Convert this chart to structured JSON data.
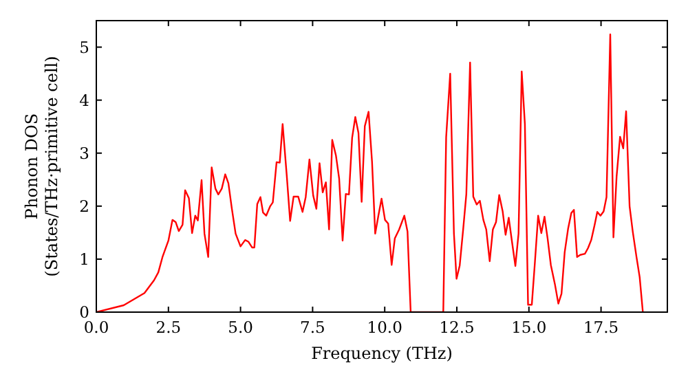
{
  "chart_data": {
    "type": "line",
    "xlabel": "Frequency (THz)",
    "ylabel": "Phonon DOS\n(States/THz·primitive cell)",
    "xlim": [
      0,
      19.8
    ],
    "ylim": [
      0,
      5.5
    ],
    "xticks": [
      {
        "value": 0,
        "label": "0.0"
      },
      {
        "value": 2.5,
        "label": "2.5"
      },
      {
        "value": 5,
        "label": "5.0"
      },
      {
        "value": 7.5,
        "label": "7.5"
      },
      {
        "value": 10,
        "label": "10.0"
      },
      {
        "value": 12.5,
        "label": "12.5"
      },
      {
        "value": 15,
        "label": "15.0"
      },
      {
        "value": 17.5,
        "label": "17.5"
      }
    ],
    "yticks": [
      0,
      1,
      2,
      3,
      4,
      5
    ],
    "grid": false,
    "marker": "none",
    "line_style": "solid",
    "series": [
      {
        "color": "#ff0000",
        "x": [
          0,
          0.95,
          1.67,
          2.0,
          2.15,
          2.3,
          2.5,
          2.64,
          2.75,
          2.86,
          2.99,
          3.08,
          3.21,
          3.32,
          3.43,
          3.52,
          3.65,
          3.75,
          3.88,
          4.0,
          4.13,
          4.23,
          4.35,
          4.47,
          4.58,
          4.7,
          4.83,
          5.0,
          5.16,
          5.27,
          5.4,
          5.48,
          5.58,
          5.69,
          5.78,
          5.89,
          6.03,
          6.12,
          6.25,
          6.36,
          6.46,
          6.6,
          6.72,
          6.84,
          7.0,
          7.15,
          7.26,
          7.39,
          7.52,
          7.63,
          7.74,
          7.85,
          7.96,
          8.07,
          8.18,
          8.31,
          8.42,
          8.54,
          8.65,
          8.76,
          8.87,
          8.98,
          9.09,
          9.2,
          9.31,
          9.44,
          9.56,
          9.67,
          9.78,
          9.89,
          10.01,
          10.12,
          10.24,
          10.35,
          10.5,
          10.68,
          10.79,
          10.9,
          12.03,
          12.13,
          12.27,
          12.4,
          12.49,
          12.6,
          12.72,
          12.83,
          12.96,
          13.07,
          13.19,
          13.3,
          13.42,
          13.52,
          13.64,
          13.75,
          13.86,
          13.97,
          14.09,
          14.19,
          14.3,
          14.42,
          14.53,
          14.64,
          14.75,
          14.86,
          14.97,
          15.1,
          15.21,
          15.32,
          15.43,
          15.54,
          15.65,
          15.76,
          15.9,
          16.02,
          16.13,
          16.24,
          16.36,
          16.47,
          16.56,
          16.67,
          16.78,
          16.94,
          17.05,
          17.16,
          17.28,
          17.37,
          17.48,
          17.59,
          17.69,
          17.82,
          17.93,
          18.04,
          18.16,
          18.27,
          18.37,
          18.49,
          18.6,
          18.73,
          18.84,
          18.95
        ],
        "values": [
          0,
          0.13,
          0.36,
          0.6,
          0.75,
          1.05,
          1.35,
          1.74,
          1.7,
          1.53,
          1.65,
          2.3,
          2.15,
          1.49,
          1.82,
          1.73,
          2.49,
          1.48,
          1.04,
          2.73,
          2.33,
          2.22,
          2.33,
          2.6,
          2.43,
          1.95,
          1.48,
          1.24,
          1.36,
          1.33,
          1.22,
          1.22,
          2.04,
          2.17,
          1.88,
          1.82,
          2.0,
          2.07,
          2.83,
          2.82,
          3.55,
          2.6,
          1.72,
          2.18,
          2.18,
          1.89,
          2.17,
          2.88,
          2.2,
          1.95,
          2.81,
          2.26,
          2.45,
          1.56,
          3.25,
          2.95,
          2.52,
          1.35,
          2.23,
          2.22,
          3.29,
          3.68,
          3.38,
          2.08,
          3.51,
          3.78,
          2.84,
          1.48,
          1.82,
          2.14,
          1.74,
          1.67,
          0.89,
          1.39,
          1.56,
          1.82,
          1.52,
          0,
          0,
          3.3,
          4.5,
          1.48,
          0.63,
          0.88,
          1.56,
          2.23,
          4.71,
          2.18,
          2.03,
          2.1,
          1.74,
          1.56,
          0.96,
          1.56,
          1.7,
          2.21,
          1.9,
          1.46,
          1.78,
          1.3,
          0.87,
          1.48,
          4.54,
          3.55,
          0.14,
          0.14,
          0.96,
          1.82,
          1.49,
          1.8,
          1.38,
          0.89,
          0.53,
          0.16,
          0.35,
          1.13,
          1.58,
          1.87,
          1.93,
          1.04,
          1.08,
          1.1,
          1.21,
          1.36,
          1.65,
          1.89,
          1.82,
          1.9,
          2.17,
          5.24,
          1.41,
          2.56,
          3.31,
          3.09,
          3.79,
          2.0,
          1.52,
          1.04,
          0.66,
          0
        ]
      }
    ]
  }
}
